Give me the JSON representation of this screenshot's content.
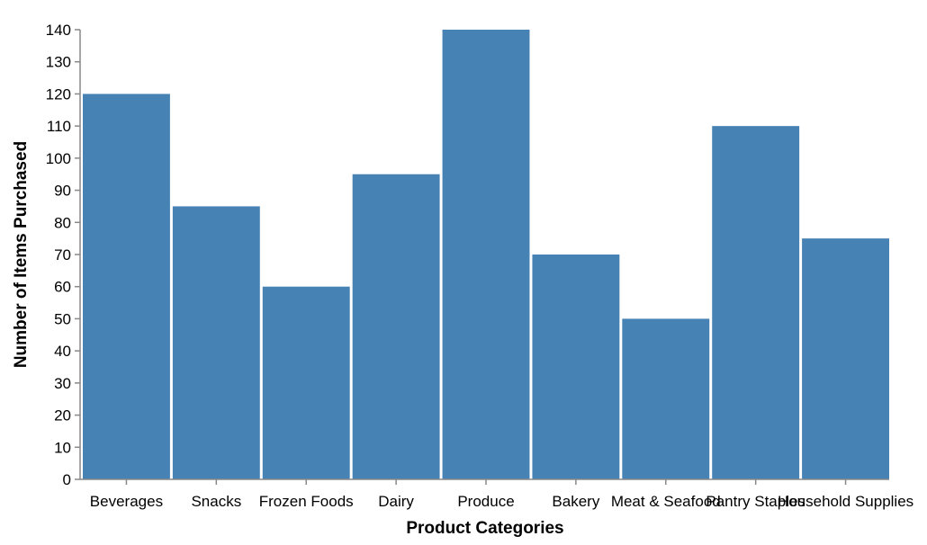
{
  "chart_data": {
    "type": "bar",
    "categories": [
      "Beverages",
      "Snacks",
      "Frozen Foods",
      "Dairy",
      "Produce",
      "Bakery",
      "Meat & Seafood",
      "Pantry Staples",
      "Household Supplies"
    ],
    "values": [
      120,
      85,
      60,
      95,
      140,
      70,
      50,
      110,
      75
    ],
    "xlabel": "Product Categories",
    "ylabel": "Number of Items Purchased",
    "ylim": [
      0,
      140
    ],
    "yticks": [
      0,
      10,
      20,
      30,
      40,
      50,
      60,
      70,
      80,
      90,
      100,
      110,
      120,
      130,
      140
    ],
    "grid": false,
    "legend": "none",
    "bar_color": "#4682b4",
    "axis_color": "#888888"
  }
}
